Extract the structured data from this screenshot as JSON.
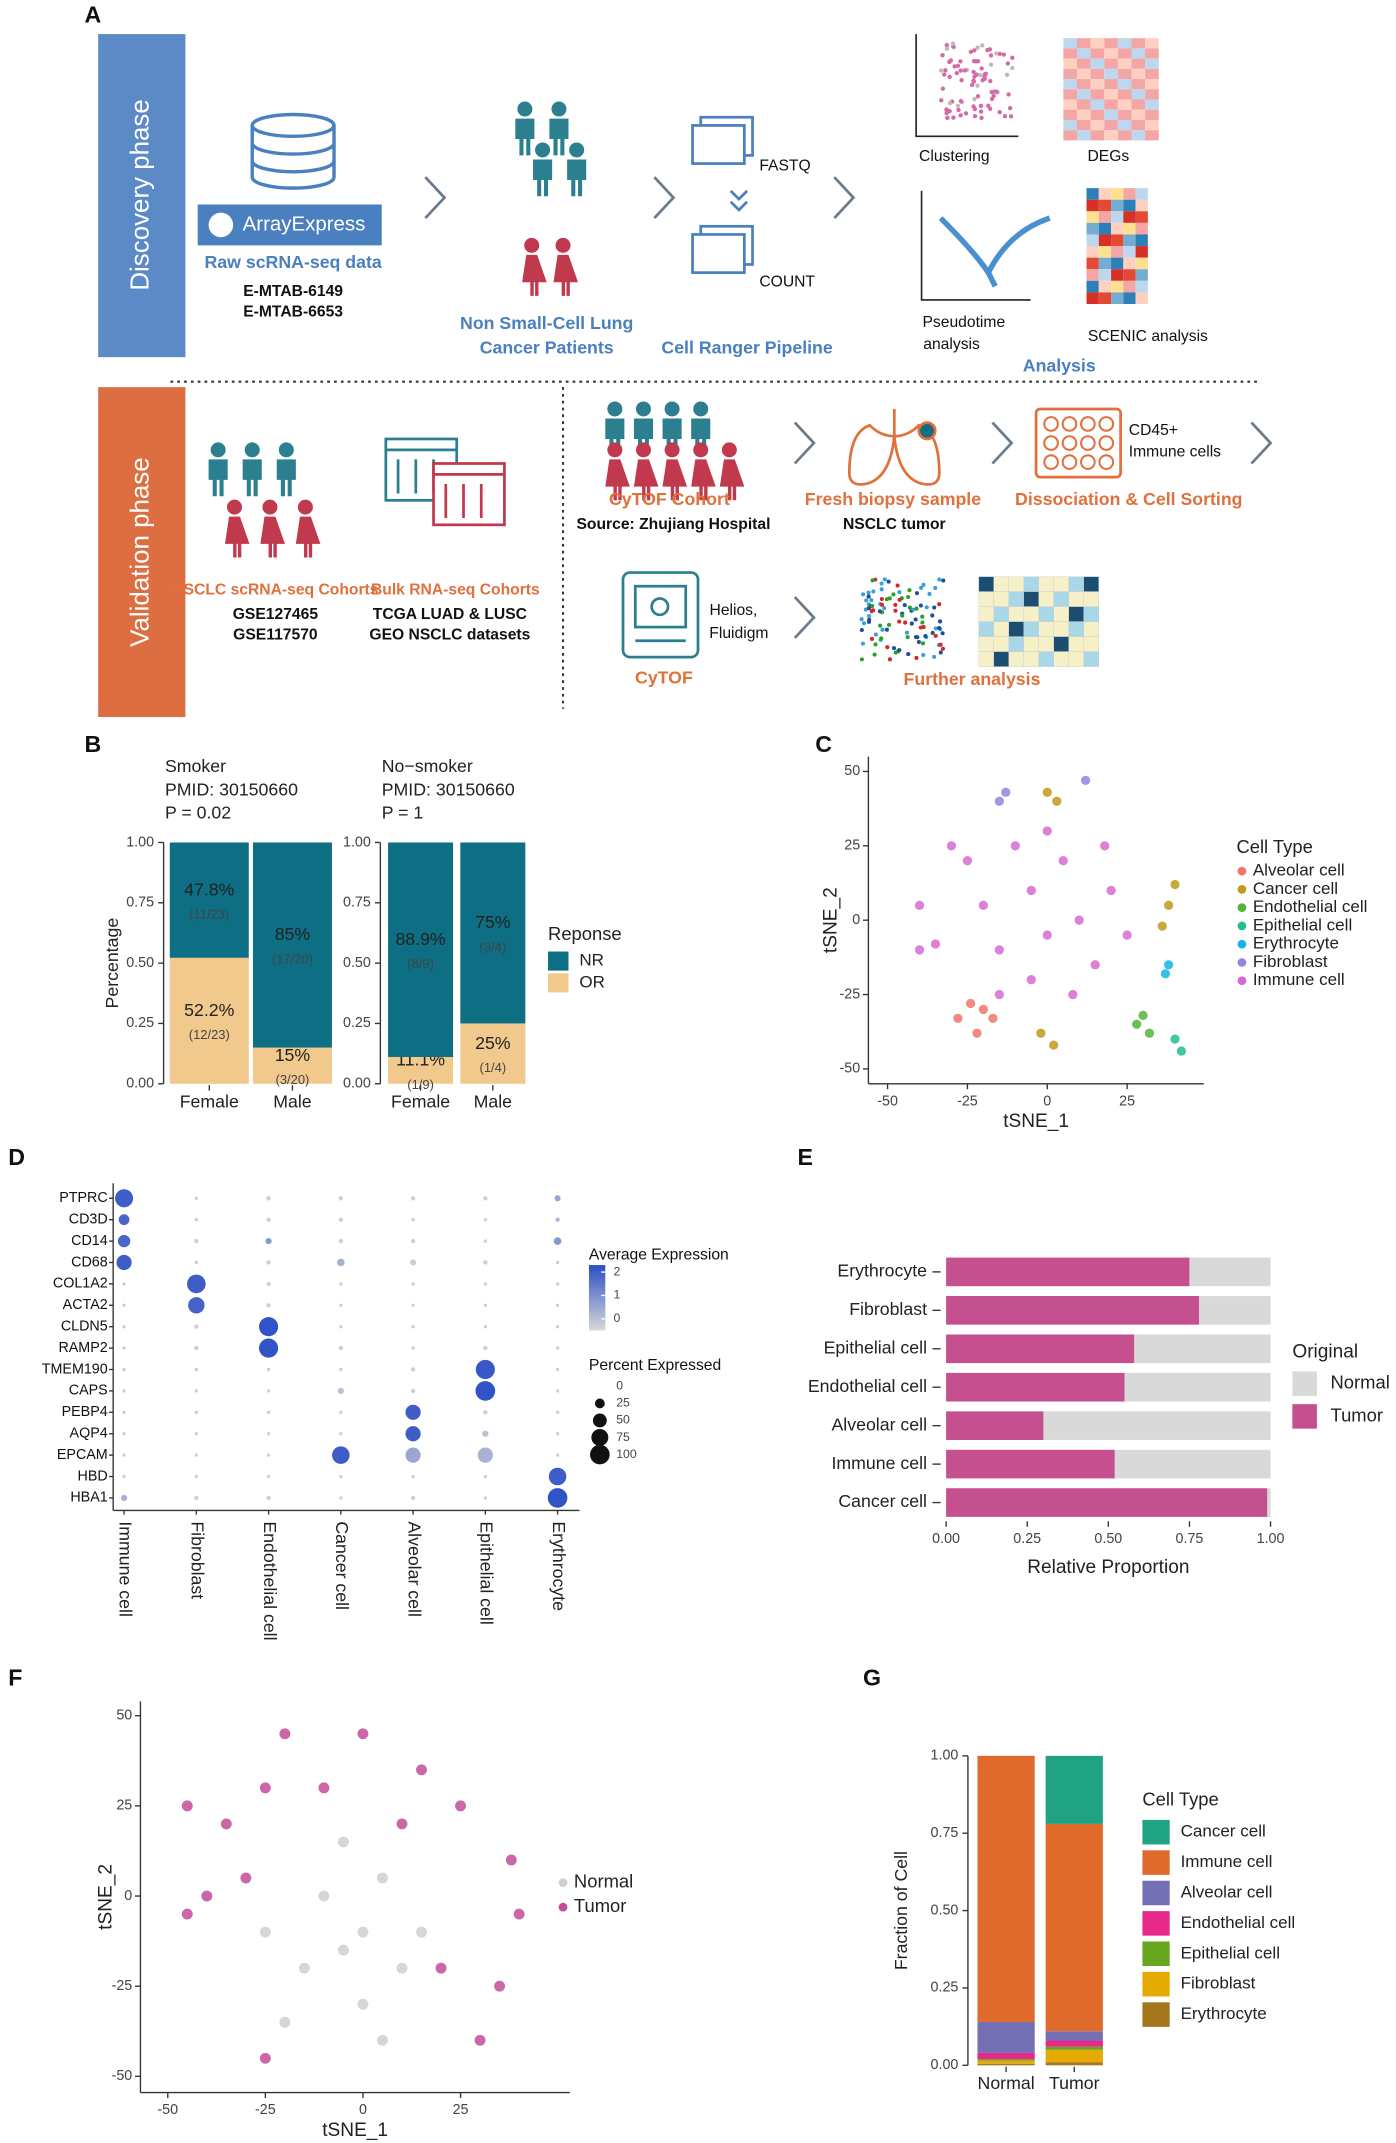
{
  "panel_labels": [
    "A",
    "B",
    "C",
    "D",
    "E",
    "F",
    "G"
  ],
  "diagram": {
    "discovery": {
      "phase": "Discovery phase",
      "source": [
        "ArrayExpress",
        "Raw scRNA-seq data",
        "E-MTAB-6149",
        "E-MTAB-6653"
      ],
      "patients": [
        "Non Small-Cell Lung",
        "Cancer Patients"
      ],
      "pipeline": [
        "FASTQ",
        "COUNT",
        "Cell Ranger Pipeline"
      ],
      "analysis": [
        "Clustering",
        "DEGs",
        "Pseudotime",
        "analysis",
        "SCENIC analysis",
        "Analysis"
      ]
    },
    "validation": {
      "phase": "Validation phase",
      "scrna": [
        "NSCLC scRNA-seq Cohorts",
        "GSE127465",
        "GSE117570"
      ],
      "bulk": [
        "Bulk RNA-seq Cohorts",
        "TCGA LUAD & LUSC",
        "GEO NSCLC datasets"
      ],
      "cytof_cohort": [
        "CyTOF Cohort",
        "Source: Zhujiang Hospital"
      ],
      "biopsy": [
        "Fresh biopsy sample",
        "NSCLC tumor"
      ],
      "sorting": [
        "CD45+",
        "Immune cells",
        "Dissociation & Cell Sorting"
      ],
      "cytof": [
        "Helios,",
        "Fluidigm",
        "CyTOF"
      ],
      "further": "Further analysis"
    }
  },
  "chart_data": [
    {
      "type": "bar",
      "stacked": true,
      "title_lines": [
        "Smoker",
        "PMID: 30150660",
        "P = 0.02"
      ],
      "categories": [
        "Female",
        "Male"
      ],
      "ylabel": "Percentage",
      "series": [
        {
          "name": "NR",
          "color": "#0e6e84",
          "values": [
            0.478,
            0.85
          ],
          "value_labels": [
            "47.8%",
            "85%"
          ],
          "fraction_labels": [
            "(11/23)",
            "(17/20)"
          ]
        },
        {
          "name": "OR",
          "color": "#f1c98c",
          "values": [
            0.522,
            0.15
          ],
          "value_labels": [
            "52.2%",
            "15%"
          ],
          "fraction_labels": [
            "(12/23)",
            "(3/20)"
          ]
        }
      ],
      "ylim": [
        0,
        1
      ],
      "yticks": [
        {
          "value": 0,
          "label": "0.00"
        },
        {
          "value": 0.25,
          "label": "0.25"
        },
        {
          "value": 0.5,
          "label": "0.50"
        },
        {
          "value": 0.75,
          "label": "0.75"
        },
        {
          "value": 1,
          "label": "1.00"
        }
      ]
    },
    {
      "type": "bar",
      "stacked": true,
      "title_lines": [
        "No−smoker",
        "PMID: 30150660",
        "P = 1"
      ],
      "categories": [
        "Female",
        "Male"
      ],
      "legend_title": "Reponse",
      "series": [
        {
          "name": "NR",
          "color": "#0e6e84",
          "values": [
            0.889,
            0.75
          ],
          "value_labels": [
            "88.9%",
            "75%"
          ],
          "fraction_labels": [
            "(8/9)",
            "(3/4)"
          ]
        },
        {
          "name": "OR",
          "color": "#f1c98c",
          "values": [
            0.111,
            0.25
          ],
          "value_labels": [
            "11.1%",
            "25%"
          ],
          "fraction_labels": [
            "(1/9)",
            "(1/4)"
          ]
        }
      ],
      "ylim": [
        0,
        1
      ],
      "yticks": [
        {
          "value": 0,
          "label": "0.00"
        },
        {
          "value": 0.25,
          "label": "0.25"
        },
        {
          "value": 0.5,
          "label": "0.50"
        },
        {
          "value": 0.75,
          "label": "0.75"
        },
        {
          "value": 1,
          "label": "1.00"
        }
      ]
    },
    {
      "type": "scatter",
      "xlabel": "tSNE_1",
      "ylabel": "tSNE_2",
      "legend_title": "Cell Type",
      "xlim": [
        -56,
        49
      ],
      "ylim": [
        -55,
        55
      ],
      "xticks": [
        -50,
        -25,
        0,
        25
      ],
      "yticks": [
        -50,
        -25,
        0,
        25,
        50
      ],
      "series": [
        {
          "name": "Alveolar cell",
          "color": "#f0766d",
          "x": [
            -28,
            -22,
            -17,
            -24,
            -20
          ],
          "y": [
            -33,
            -38,
            -33,
            -28,
            -30
          ]
        },
        {
          "name": "Cancer cell",
          "color": "#c09a1a",
          "x": [
            0,
            3,
            38,
            40,
            36,
            -2,
            2
          ],
          "y": [
            43,
            40,
            5,
            12,
            -2,
            -38,
            -42
          ]
        },
        {
          "name": "Endothelial cell",
          "color": "#53b43a",
          "x": [
            28,
            32,
            30
          ],
          "y": [
            -35,
            -38,
            -32
          ]
        },
        {
          "name": "Epithelial cell",
          "color": "#1fbf92",
          "x": [
            40,
            42
          ],
          "y": [
            -40,
            -44
          ]
        },
        {
          "name": "Erythrocyte",
          "color": "#12b5e6",
          "x": [
            38,
            37
          ],
          "y": [
            -15,
            -18
          ]
        },
        {
          "name": "Fibroblast",
          "color": "#8f86e0",
          "x": [
            -15,
            -13,
            12
          ],
          "y": [
            40,
            43,
            47
          ]
        },
        {
          "name": "Immune cell",
          "color": "#d66bcf",
          "x": [
            -40,
            -35,
            -25,
            -20,
            -15,
            -10,
            -5,
            0,
            5,
            10,
            15,
            -5,
            20,
            -30,
            8,
            -15,
            25,
            -40,
            0,
            18
          ],
          "y": [
            5,
            -8,
            20,
            5,
            -10,
            25,
            10,
            -5,
            20,
            0,
            -15,
            -20,
            10,
            25,
            -25,
            -25,
            -5,
            -10,
            30,
            25
          ]
        }
      ]
    },
    {
      "type": "dot",
      "color_title": "Average Expression",
      "size_title": "Percent Expressed",
      "genes": [
        "PTPRC",
        "CD3D",
        "CD14",
        "CD68",
        "COL1A2",
        "ACTA2",
        "CLDN5",
        "RAMP2",
        "TMEM190",
        "CAPS",
        "PEBP4",
        "AQP4",
        "EPCAM",
        "HBD",
        "HBA1"
      ],
      "categories": [
        "Immune cell",
        "Fibroblast",
        "Endothelial cell",
        "Cancer cell",
        "Alveolar cell",
        "Epithelial cell",
        "Erythrocyte"
      ],
      "percent": [
        [
          85,
          3,
          5,
          5,
          5,
          5,
          10
        ],
        [
          30,
          3,
          5,
          5,
          3,
          3,
          5
        ],
        [
          40,
          5,
          10,
          5,
          5,
          3,
          15
        ],
        [
          60,
          3,
          5,
          15,
          10,
          5,
          3
        ],
        [
          3,
          90,
          5,
          3,
          3,
          3,
          3
        ],
        [
          3,
          70,
          5,
          3,
          3,
          3,
          3
        ],
        [
          3,
          5,
          95,
          3,
          3,
          3,
          3
        ],
        [
          3,
          5,
          95,
          5,
          3,
          5,
          3
        ],
        [
          3,
          3,
          3,
          3,
          5,
          95,
          3
        ],
        [
          3,
          3,
          3,
          10,
          5,
          100,
          3
        ],
        [
          3,
          3,
          3,
          3,
          60,
          5,
          3
        ],
        [
          3,
          3,
          3,
          3,
          60,
          10,
          3
        ],
        [
          3,
          3,
          3,
          80,
          60,
          60,
          3
        ],
        [
          3,
          3,
          3,
          3,
          3,
          3,
          80
        ],
        [
          10,
          5,
          5,
          3,
          5,
          3,
          100
        ]
      ],
      "expression": [
        [
          2,
          -0.3,
          -0.3,
          -0.3,
          -0.3,
          -0.3,
          0.5
        ],
        [
          1.8,
          -0.3,
          -0.3,
          -0.3,
          -0.3,
          -0.3,
          0.2
        ],
        [
          1.8,
          -0.3,
          0.8,
          -0.3,
          -0.3,
          -0.3,
          0.8
        ],
        [
          2,
          -0.3,
          -0.3,
          0.3,
          -0.3,
          -0.3,
          -0.3
        ],
        [
          -0.3,
          2,
          -0.3,
          -0.3,
          -0.3,
          -0.3,
          -0.3
        ],
        [
          -0.3,
          1.9,
          -0.3,
          -0.3,
          -0.3,
          -0.3,
          -0.3
        ],
        [
          -0.3,
          -0.3,
          2.2,
          -0.3,
          -0.3,
          -0.3,
          -0.3
        ],
        [
          -0.3,
          -0.3,
          2.2,
          -0.3,
          -0.3,
          -0.3,
          -0.3
        ],
        [
          -0.3,
          -0.3,
          -0.3,
          -0.3,
          -0.3,
          2.1,
          -0.3
        ],
        [
          -0.3,
          -0.3,
          -0.3,
          0,
          -0.3,
          2.2,
          -0.3
        ],
        [
          -0.3,
          -0.3,
          -0.3,
          -0.3,
          2,
          -0.3,
          -0.3
        ],
        [
          -0.3,
          -0.3,
          -0.3,
          -0.3,
          2,
          0,
          -0.3
        ],
        [
          -0.3,
          -0.3,
          -0.3,
          2,
          0.5,
          0.3,
          -0.3
        ],
        [
          -0.3,
          -0.3,
          -0.3,
          -0.3,
          -0.3,
          -0.3,
          2
        ],
        [
          0.3,
          -0.3,
          -0.3,
          -0.3,
          -0.3,
          -0.3,
          2.2
        ]
      ],
      "colors": [
        "#d9d9d9",
        "#2b4ec4"
      ],
      "color_lim": [
        -0.5,
        2.3
      ],
      "color_ticks": [
        0,
        1,
        2
      ],
      "size_ticks": [
        0,
        25,
        50,
        75,
        100
      ]
    },
    {
      "type": "hbar",
      "stacked": true,
      "xlabel": "Relative Proportion",
      "legend_title": "Original",
      "categories": [
        "Erythrocyte",
        "Fibroblast",
        "Epithelial cell",
        "Endothelial cell",
        "Alveolar cell",
        "Immune cell",
        "Cancer cell"
      ],
      "series": [
        {
          "name": "Normal",
          "color": "#d9d9d9",
          "values": [
            0.25,
            0.22,
            0.42,
            0.45,
            0.7,
            0.48,
            0.01
          ]
        },
        {
          "name": "Tumor",
          "color": "#c5508f",
          "values": [
            0.75,
            0.78,
            0.58,
            0.55,
            0.3,
            0.52,
            0.99
          ]
        }
      ],
      "xlim": [
        0,
        1
      ],
      "xticks": [
        {
          "value": 0,
          "label": "0.00"
        },
        {
          "value": 0.25,
          "label": "0.25"
        },
        {
          "value": 0.5,
          "label": "0.50"
        },
        {
          "value": 0.75,
          "label": "0.75"
        },
        {
          "value": 1,
          "label": "1.00"
        }
      ]
    },
    {
      "type": "scatter",
      "xlabel": "tSNE_1",
      "ylabel": "tSNE_2",
      "xlim": [
        -57,
        53
      ],
      "ylim": [
        -54.5,
        54
      ],
      "xticks": [
        -50,
        -25,
        0,
        25
      ],
      "yticks": [
        -50,
        -25,
        0,
        25,
        50
      ],
      "series": [
        {
          "name": "Normal",
          "color": "#cfcfcf",
          "x": [
            -10,
            -5,
            0,
            5,
            -15,
            0,
            -20,
            10,
            -5,
            15,
            -25,
            5
          ],
          "y": [
            0,
            -15,
            -10,
            5,
            -20,
            -30,
            -35,
            -20,
            15,
            -10,
            -10,
            -40
          ]
        },
        {
          "name": "Tumor",
          "color": "#c24c98",
          "x": [
            -45,
            -40,
            -35,
            -25,
            -20,
            0,
            15,
            25,
            38,
            40,
            30,
            -25,
            20,
            -30,
            -10,
            10,
            35,
            -45
          ],
          "y": [
            -5,
            0,
            20,
            30,
            45,
            45,
            35,
            25,
            10,
            -5,
            -40,
            -45,
            -20,
            5,
            30,
            20,
            -25,
            25
          ]
        }
      ]
    },
    {
      "type": "bar",
      "stacked": true,
      "ylabel": "Fraction of Cell",
      "legend_title": "Cell Type",
      "categories": [
        "Normal",
        "Tumor"
      ],
      "series": [
        {
          "name": "Cancer cell",
          "color": "#1fa383",
          "values": [
            0,
            0.22
          ]
        },
        {
          "name": "Immune cell",
          "color": "#df6a2b",
          "values": [
            0.86,
            0.67
          ]
        },
        {
          "name": "Alveolar cell",
          "color": "#7570b3",
          "values": [
            0.1,
            0.03
          ]
        },
        {
          "name": "Endothelial cell",
          "color": "#e7298a",
          "values": [
            0.02,
            0.02
          ]
        },
        {
          "name": "Epithelial cell",
          "color": "#66a61e",
          "values": [
            0.005,
            0.01
          ]
        },
        {
          "name": "Fibroblast",
          "color": "#e6ab02",
          "values": [
            0.01,
            0.04
          ]
        },
        {
          "name": "Erythrocyte",
          "color": "#a6761d",
          "values": [
            0.005,
            0.01
          ]
        }
      ],
      "ylim": [
        0,
        1
      ],
      "yticks": [
        {
          "value": 0,
          "label": "0.00"
        },
        {
          "value": 0.25,
          "label": "0.25"
        },
        {
          "value": 0.5,
          "label": "0.50"
        },
        {
          "value": 0.75,
          "label": "0.75"
        },
        {
          "value": 1,
          "label": "1.00"
        }
      ]
    }
  ]
}
